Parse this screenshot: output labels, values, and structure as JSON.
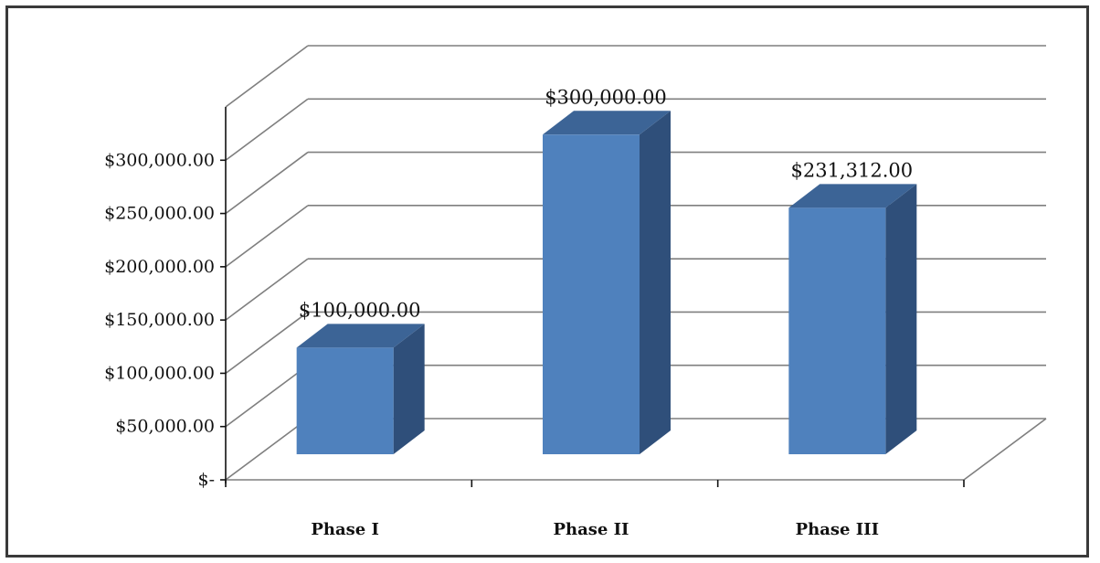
{
  "chart_data": {
    "type": "bar",
    "style": "3d-column",
    "categories": [
      "Phase I",
      "Phase II",
      "Phase III"
    ],
    "values": [
      100000,
      300000,
      231312
    ],
    "data_labels": [
      "$100,000.00",
      "$300,000.00",
      "$231,312.00"
    ],
    "y_ticks": [
      {
        "value": 0,
        "label": "$-"
      },
      {
        "value": 50000,
        "label": "$50,000.00"
      },
      {
        "value": 100000,
        "label": "$100,000.00"
      },
      {
        "value": 150000,
        "label": "$150,000.00"
      },
      {
        "value": 200000,
        "label": "$200,000.00"
      },
      {
        "value": 250000,
        "label": "$250,000.00"
      },
      {
        "value": 300000,
        "label": "$300,000.00"
      }
    ],
    "ylim": [
      0,
      350000
    ],
    "grid": true,
    "legend": "none",
    "colors": {
      "bar_front": "#4f81bd",
      "bar_side": "#2f4f7a",
      "bar_top": "#3c6496",
      "grid": "#7f7f7f",
      "frame": "#3a3a3a"
    }
  }
}
